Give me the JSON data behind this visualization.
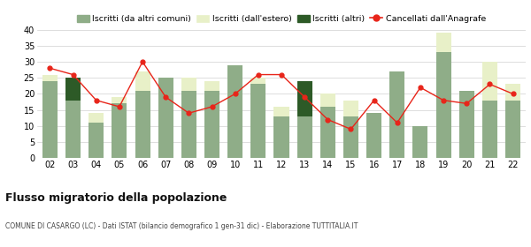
{
  "years": [
    "02",
    "03",
    "04",
    "05",
    "06",
    "07",
    "08",
    "09",
    "10",
    "11",
    "12",
    "13",
    "14",
    "15",
    "16",
    "17",
    "18",
    "19",
    "20",
    "21",
    "22"
  ],
  "iscritti_comuni": [
    24,
    18,
    11,
    17,
    21,
    25,
    21,
    21,
    29,
    23,
    13,
    13,
    16,
    13,
    14,
    27,
    10,
    33,
    21,
    18,
    18
  ],
  "iscritti_estero": [
    2,
    0,
    3,
    2,
    6,
    0,
    4,
    3,
    0,
    2,
    3,
    0,
    4,
    5,
    0,
    0,
    0,
    6,
    0,
    12,
    5
  ],
  "iscritti_altri": [
    0,
    7,
    0,
    0,
    0,
    0,
    0,
    0,
    0,
    0,
    0,
    11,
    0,
    0,
    0,
    0,
    0,
    0,
    0,
    0,
    0
  ],
  "cancellati": [
    28,
    26,
    18,
    16,
    30,
    19,
    14,
    16,
    20,
    26,
    26,
    19,
    12,
    9,
    18,
    11,
    22,
    18,
    17,
    23,
    20
  ],
  "color_comuni": "#8fad88",
  "color_estero": "#e8f0c8",
  "color_altri": "#2d5a27",
  "color_cancellati": "#e8251a",
  "title": "Flusso migratorio della popolazione",
  "subtitle": "COMUNE DI CASARGO (LC) - Dati ISTAT (bilancio demografico 1 gen-31 dic) - Elaborazione TUTTITALIA.IT",
  "legend_labels": [
    "Iscritti (da altri comuni)",
    "Iscritti (dall'estero)",
    "Iscritti (altri)",
    "Cancellati dall'Anagrafe"
  ],
  "ylim": [
    0,
    40
  ],
  "yticks": [
    0,
    5,
    10,
    15,
    20,
    25,
    30,
    35,
    40
  ],
  "bg_color": "#ffffff",
  "grid_color": "#d0d0d0"
}
